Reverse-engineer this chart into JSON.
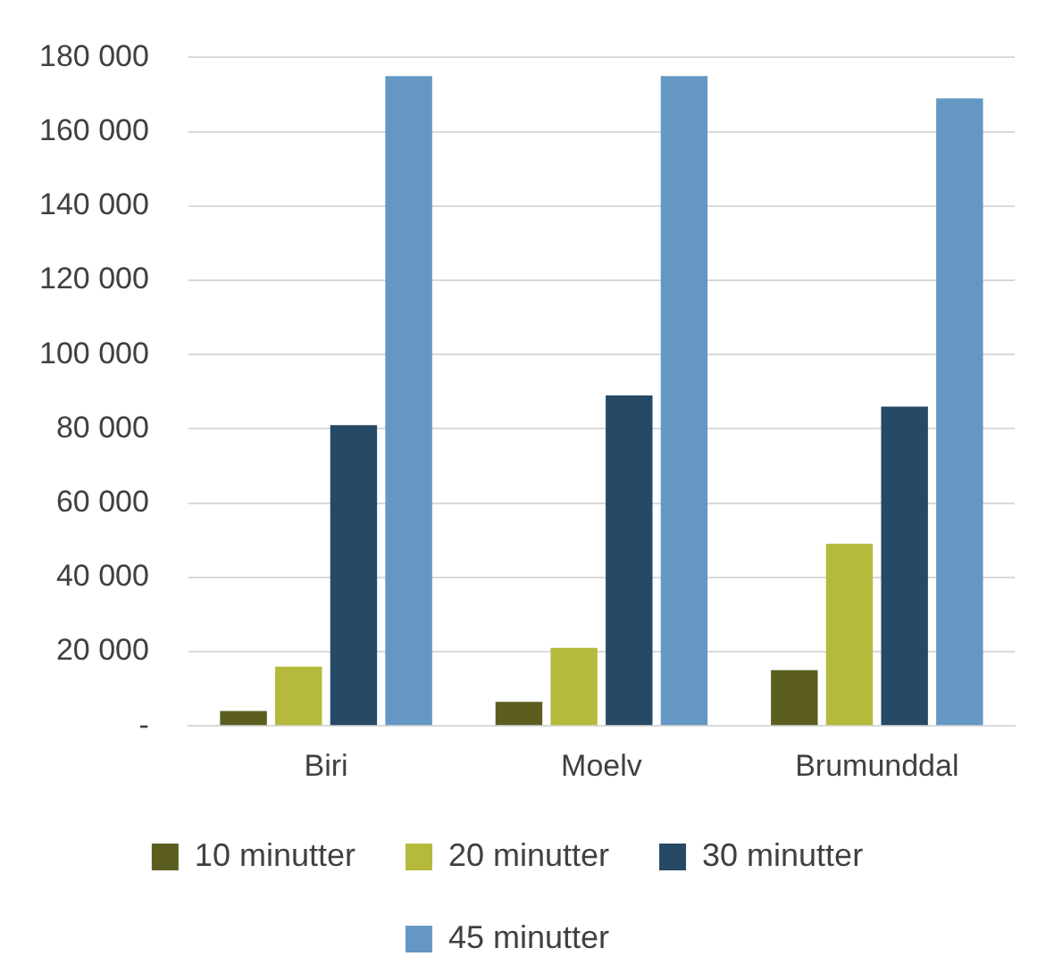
{
  "chart_data": {
    "type": "bar",
    "categories": [
      "Biri",
      "Moelv",
      "Brumunddal"
    ],
    "series": [
      {
        "name": "10 minutter",
        "color": "#5b5e1f",
        "values": [
          4000,
          6500,
          15000
        ]
      },
      {
        "name": "20 minutter",
        "color": "#b5b93c",
        "values": [
          16000,
          21000,
          49000
        ]
      },
      {
        "name": "30 minutter",
        "color": "#264966",
        "values": [
          81000,
          89000,
          86000
        ]
      },
      {
        "name": "45 minutter",
        "color": "#6497c3",
        "values": [
          175000,
          175000,
          169000
        ]
      }
    ],
    "ylim": [
      0,
      180000
    ],
    "yticks": [
      {
        "value": 0,
        "label": "-"
      },
      {
        "value": 20000,
        "label": "20 000"
      },
      {
        "value": 40000,
        "label": "40 000"
      },
      {
        "value": 60000,
        "label": "60 000"
      },
      {
        "value": 80000,
        "label": "80 000"
      },
      {
        "value": 100000,
        "label": "100 000"
      },
      {
        "value": 120000,
        "label": "120 000"
      },
      {
        "value": 140000,
        "label": "140 000"
      },
      {
        "value": 160000,
        "label": "160 000"
      },
      {
        "value": 180000,
        "label": "180 000"
      }
    ],
    "grid": "y",
    "legend": "bottom"
  }
}
